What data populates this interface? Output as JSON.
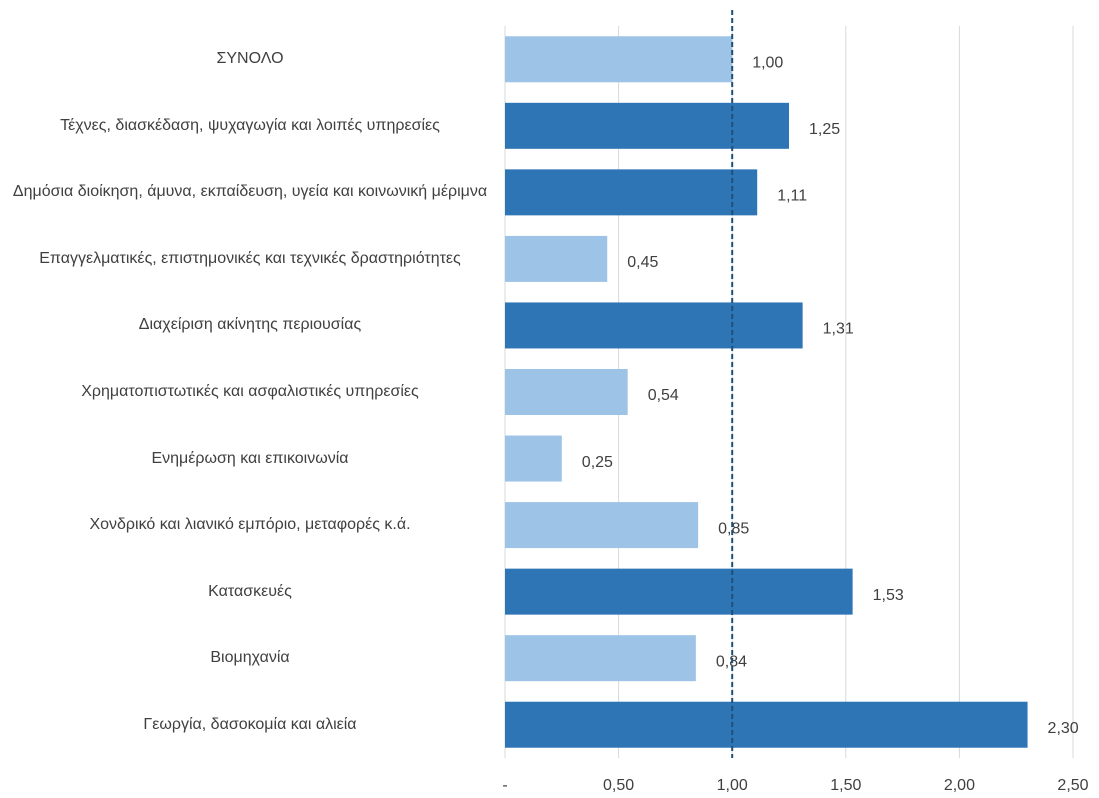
{
  "chart_data": {
    "type": "bar",
    "orientation": "horizontal",
    "categories": [
      "ΣΥΝΟΛΟ",
      "Τέχνες, διασκέδαση, ψυχαγωγία και λοιπές υπηρεσίες",
      "Δημόσια διοίκηση, άμυνα, εκπαίδευση, υγεία και κοινωνική μέριμνα",
      "Επαγγελματικές, επιστημονικές και τεχνικές δραστηριότητες",
      "Διαχείριση ακίνητης περιουσίας",
      "Χρηματοπιστωτικές και ασφαλιστικές υπηρεσίες",
      "Ενημέρωση και επικοινωνία",
      "Χονδρικό και λιανικό εμπόριο, μεταφορές κ.ά.",
      "Κατασκευές",
      "Βιομηχανία",
      "Γεωργία, δασοκομία και αλιεία"
    ],
    "values": [
      1.0,
      1.25,
      1.11,
      0.45,
      1.31,
      0.54,
      0.25,
      0.85,
      1.53,
      0.84,
      2.3
    ],
    "value_labels": [
      "1,00",
      "1,25",
      "1,11",
      "0,45",
      "1,31",
      "0,54",
      "0,25",
      "0,85",
      "1,53",
      "0,84",
      "2,30"
    ],
    "colors": [
      "#9dc3e6",
      "#2e75b6",
      "#2e75b6",
      "#9dc3e6",
      "#2e75b6",
      "#9dc3e6",
      "#9dc3e6",
      "#9dc3e6",
      "#2e75b6",
      "#9dc3e6",
      "#2e75b6"
    ],
    "xlim": [
      0,
      2.5
    ],
    "xticks": [
      {
        "value": 0,
        "label": "-"
      },
      {
        "value": 0.5,
        "label": "0,50"
      },
      {
        "value": 1,
        "label": "1,00"
      },
      {
        "value": 1.5,
        "label": "1,50"
      },
      {
        "value": 2,
        "label": "2,00"
      },
      {
        "value": 2.5,
        "label": "2,50"
      }
    ],
    "grid": true,
    "reference_value": 1
  }
}
